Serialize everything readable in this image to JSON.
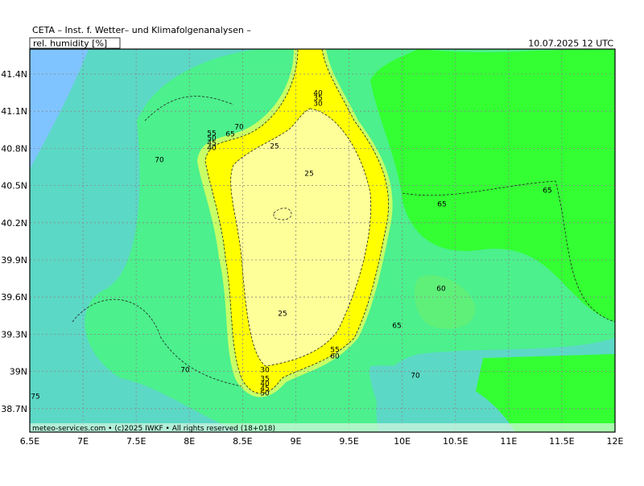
{
  "header": {
    "title": "CETA – Inst. f. Wetter– und Klimafolgenanalysen –",
    "parameter": "rel. humidity [%]",
    "valid_time": "10.07.2025 12 UTC"
  },
  "footer": "meteo-services.com • (c)2025 IWKF • All rights reserved (18+018)",
  "x_axis": {
    "labels": [
      "6.5E",
      "7E",
      "7.5E",
      "8E",
      "8.5E",
      "9E",
      "9.5E",
      "10E",
      "10.5E",
      "11E",
      "11.5E",
      "12E"
    ]
  },
  "y_axis": {
    "labels": [
      "41.4N",
      "41.1N",
      "40.8N",
      "40.5N",
      "40.2N",
      "39.9N",
      "39.6N",
      "39.3N",
      "39N",
      "38.7N"
    ]
  },
  "contour_labels": [
    "70",
    "65",
    "55",
    "50",
    "45",
    "40",
    "70",
    "25",
    "25",
    "40",
    "35",
    "30",
    "65",
    "65",
    "60",
    "65",
    "25",
    "55",
    "60",
    "70",
    "30",
    "35",
    "40",
    "45",
    "50",
    "70",
    "75"
  ]
}
